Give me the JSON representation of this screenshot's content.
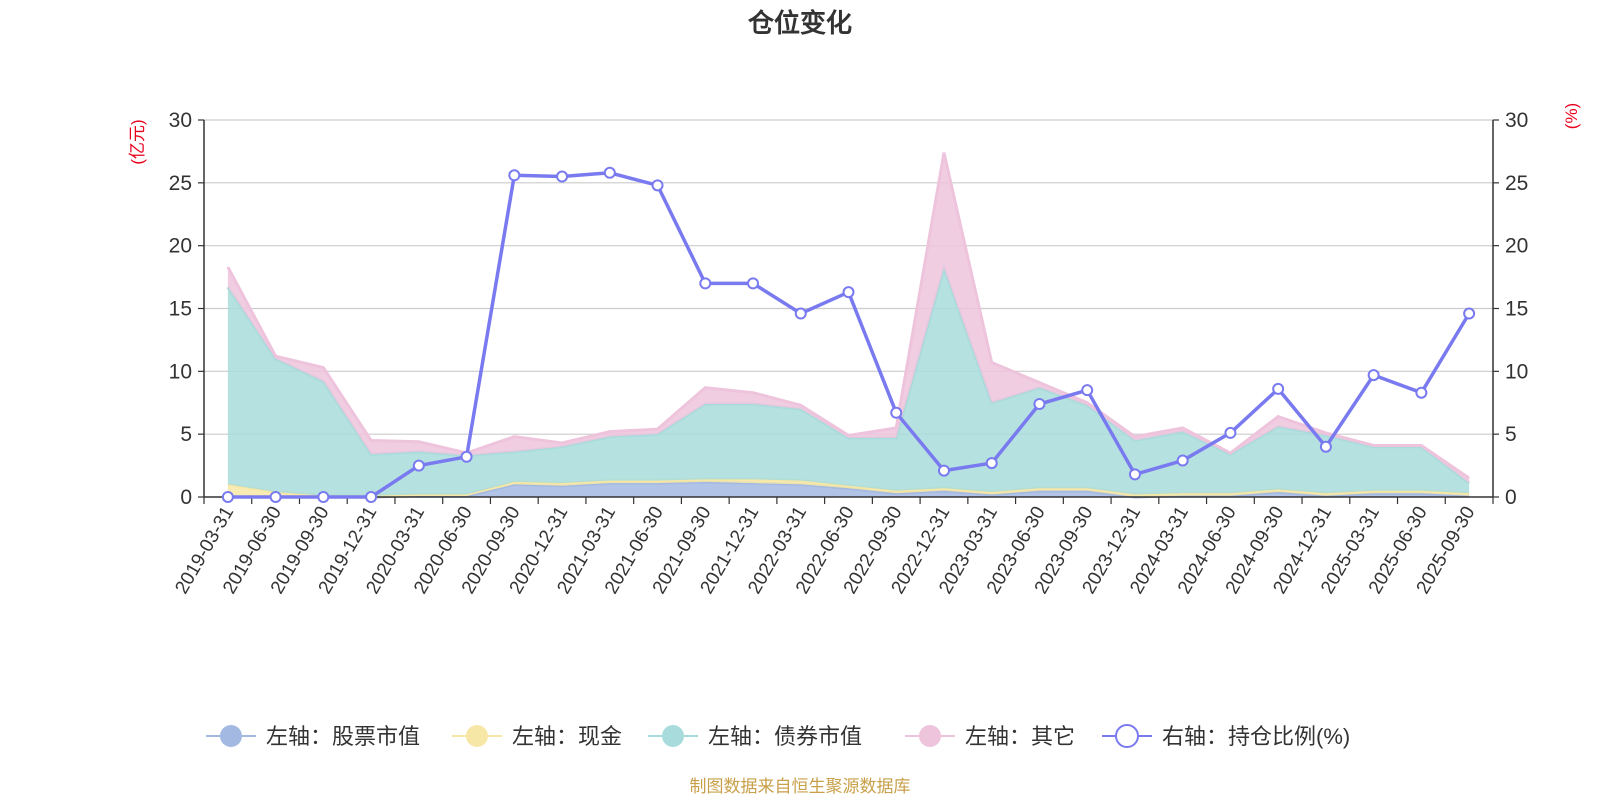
{
  "chart_data": {
    "type": "area",
    "title": "仓位变化",
    "left_axis_unit": "(亿元)",
    "right_axis_unit": "(%)",
    "left_ylim": [
      0,
      30
    ],
    "right_ylim": [
      0,
      30
    ],
    "y_ticks": [
      0,
      5,
      10,
      15,
      20,
      25,
      30
    ],
    "grid": true,
    "legend_position": "bottom",
    "categories": [
      "2019-03-31",
      "2019-06-30",
      "2019-09-30",
      "2019-12-31",
      "2020-03-31",
      "2020-06-30",
      "2020-09-30",
      "2020-12-31",
      "2021-03-31",
      "2021-06-30",
      "2021-09-30",
      "2021-12-31",
      "2022-03-31",
      "2022-06-30",
      "2022-09-30",
      "2022-12-31",
      "2023-03-31",
      "2023-06-30",
      "2023-09-30",
      "2023-12-31",
      "2024-03-31",
      "2024-06-30",
      "2024-09-30",
      "2024-12-31",
      "2025-03-31",
      "2025-06-30",
      "2025-09-30"
    ],
    "series": [
      {
        "name": "左轴：股票市值",
        "axis": "left",
        "kind": "stacked-area",
        "color": "#a3b9e2",
        "values": [
          0.0,
          0.0,
          0.0,
          0.0,
          0.1,
          0.1,
          1.0,
          0.9,
          1.1,
          1.1,
          1.2,
          1.1,
          1.0,
          0.7,
          0.3,
          0.5,
          0.2,
          0.5,
          0.5,
          0.0,
          0.1,
          0.1,
          0.4,
          0.1,
          0.3,
          0.3,
          0.1
        ]
      },
      {
        "name": "左轴：现金",
        "axis": "left",
        "kind": "stacked-area",
        "color": "#f7e7a6",
        "values": [
          1.0,
          0.4,
          0.1,
          0.1,
          0.1,
          0.1,
          0.2,
          0.2,
          0.2,
          0.2,
          0.2,
          0.3,
          0.3,
          0.2,
          0.2,
          0.2,
          0.2,
          0.2,
          0.2,
          0.2,
          0.2,
          0.2,
          0.2,
          0.2,
          0.2,
          0.2,
          0.2
        ]
      },
      {
        "name": "左轴：债券市值",
        "axis": "left",
        "kind": "stacked-area",
        "color": "#a8dcdc",
        "values": [
          15.7,
          10.6,
          9.1,
          3.3,
          3.4,
          3.1,
          2.4,
          2.9,
          3.5,
          3.7,
          6.0,
          6.0,
          5.7,
          3.8,
          4.2,
          17.5,
          7.1,
          8.0,
          6.6,
          4.3,
          4.9,
          3.1,
          5.0,
          4.6,
          3.5,
          3.5,
          0.8
        ]
      },
      {
        "name": "左轴：其它",
        "axis": "left",
        "kind": "stacked-area",
        "color": "#eec4dd",
        "values": [
          1.6,
          0.2,
          1.1,
          1.1,
          0.8,
          0.2,
          1.2,
          0.3,
          0.4,
          0.4,
          1.3,
          0.9,
          0.3,
          0.2,
          0.8,
          9.2,
          3.2,
          0.4,
          0.2,
          0.3,
          0.3,
          0.1,
          0.8,
          0.2,
          0.1,
          0.1,
          0.4
        ]
      },
      {
        "name": "右轴：持仓比例(%)",
        "axis": "right",
        "kind": "line",
        "color": "#7a7af0",
        "values": [
          0.0,
          0.0,
          0.0,
          0.0,
          2.5,
          3.2,
          25.6,
          25.5,
          25.8,
          24.8,
          17.0,
          17.0,
          14.6,
          16.3,
          6.7,
          2.1,
          2.7,
          7.4,
          8.5,
          1.8,
          2.9,
          5.1,
          8.6,
          4.0,
          9.7,
          8.3,
          14.6
        ]
      }
    ],
    "source_note": "制图数据来自恒生聚源数据库"
  }
}
